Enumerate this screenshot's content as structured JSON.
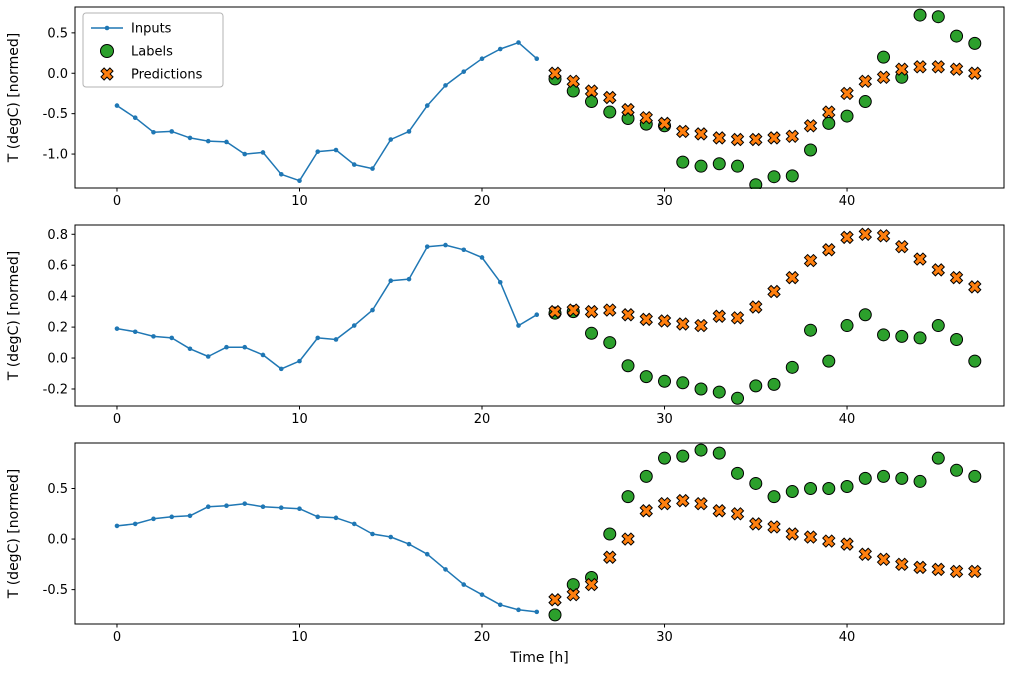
{
  "figure": {
    "background": "#ffffff",
    "text_color": "#000000",
    "spine_color": "#000000",
    "xlabel": "Time [h]",
    "x_inputs": [
      0,
      1,
      2,
      3,
      4,
      5,
      6,
      7,
      8,
      9,
      10,
      11,
      12,
      13,
      14,
      15,
      16,
      17,
      18,
      19,
      20,
      21,
      22,
      23
    ],
    "x_outputs": [
      24,
      25,
      26,
      27,
      28,
      29,
      30,
      31,
      32,
      33,
      34,
      35,
      36,
      37,
      38,
      39,
      40,
      41,
      42,
      43,
      44,
      45,
      46,
      47
    ],
    "legend": {
      "position": "upper-left",
      "entries": [
        {
          "label": "Inputs",
          "marker": "line-dot",
          "color": "#1f77b4"
        },
        {
          "label": "Labels",
          "marker": "circle",
          "color": "#2ca02c",
          "edge_color": "#000000"
        },
        {
          "label": "Predictions",
          "marker": "X",
          "color": "#ff7f0e",
          "edge_color": "#000000"
        }
      ]
    }
  },
  "chart_data": [
    {
      "type": "line",
      "title": "",
      "ylabel": "T (degC) [normed]",
      "xlabel": "",
      "grid": false,
      "xlim": [
        -2.3,
        48.6
      ],
      "ylim": [
        -1.42,
        0.82
      ],
      "xticks": [
        0,
        10,
        20,
        30,
        40
      ],
      "xtick_labels": [
        "0",
        "10",
        "20",
        "30",
        "40"
      ],
      "yticks": [
        0.5,
        0.0,
        -0.5,
        -1.0
      ],
      "ytick_labels": [
        "0.5",
        "0.0",
        "-0.5",
        "-1.0"
      ],
      "series": [
        {
          "name": "Inputs",
          "marker": "line-dot",
          "color": "#1f77b4",
          "x_ref": "x_inputs",
          "y": [
            -0.4,
            -0.55,
            -0.73,
            -0.72,
            -0.8,
            -0.84,
            -0.85,
            -1.0,
            -0.98,
            -1.25,
            -1.33,
            -0.97,
            -0.95,
            -1.13,
            -1.18,
            -0.82,
            -0.72,
            -0.4,
            -0.15,
            0.02,
            0.18,
            0.3,
            0.38,
            0.18
          ]
        },
        {
          "name": "Labels",
          "marker": "circle",
          "color": "#2ca02c",
          "edge_color": "#000000",
          "x_ref": "x_outputs",
          "y": [
            -0.07,
            -0.22,
            -0.35,
            -0.48,
            -0.56,
            -0.63,
            -0.65,
            -1.1,
            -1.15,
            -1.12,
            -1.15,
            -1.38,
            -1.28,
            -1.27,
            -0.95,
            -0.62,
            -0.53,
            -0.35,
            0.2,
            -0.05,
            0.72,
            0.7,
            0.46,
            0.37
          ]
        },
        {
          "name": "Predictions",
          "marker": "X",
          "color": "#ff7f0e",
          "edge_color": "#000000",
          "x_ref": "x_outputs",
          "y": [
            0.0,
            -0.1,
            -0.22,
            -0.3,
            -0.45,
            -0.55,
            -0.62,
            -0.72,
            -0.75,
            -0.8,
            -0.82,
            -0.82,
            -0.8,
            -0.78,
            -0.65,
            -0.48,
            -0.25,
            -0.1,
            -0.05,
            0.05,
            0.08,
            0.08,
            0.05,
            0.0
          ]
        }
      ]
    },
    {
      "type": "line",
      "title": "",
      "ylabel": "T (degC) [normed]",
      "xlabel": "",
      "grid": false,
      "xlim": [
        -2.3,
        48.6
      ],
      "ylim": [
        -0.31,
        0.86
      ],
      "xticks": [
        0,
        10,
        20,
        30,
        40
      ],
      "xtick_labels": [
        "0",
        "10",
        "20",
        "30",
        "40"
      ],
      "yticks": [
        0.8,
        0.6,
        0.4,
        0.2,
        0.0,
        -0.2
      ],
      "ytick_labels": [
        "0.8",
        "0.6",
        "0.4",
        "0.2",
        "0.0",
        "-0.2"
      ],
      "series": [
        {
          "name": "Inputs",
          "marker": "line-dot",
          "color": "#1f77b4",
          "x_ref": "x_inputs",
          "y": [
            0.19,
            0.17,
            0.14,
            0.13,
            0.06,
            0.01,
            0.07,
            0.07,
            0.02,
            -0.07,
            -0.02,
            0.13,
            0.12,
            0.21,
            0.31,
            0.5,
            0.51,
            0.72,
            0.73,
            0.7,
            0.65,
            0.49,
            0.21,
            0.28
          ]
        },
        {
          "name": "Labels",
          "marker": "circle",
          "color": "#2ca02c",
          "edge_color": "#000000",
          "x_ref": "x_outputs",
          "y": [
            0.29,
            0.3,
            0.16,
            0.1,
            -0.05,
            -0.12,
            -0.15,
            -0.16,
            -0.2,
            -0.22,
            -0.26,
            -0.18,
            -0.17,
            -0.06,
            0.18,
            -0.02,
            0.21,
            0.28,
            0.15,
            0.14,
            0.13,
            0.21,
            0.12,
            -0.02
          ]
        },
        {
          "name": "Predictions",
          "marker": "X",
          "color": "#ff7f0e",
          "edge_color": "#000000",
          "x_ref": "x_outputs",
          "y": [
            0.3,
            0.31,
            0.3,
            0.31,
            0.28,
            0.25,
            0.24,
            0.22,
            0.21,
            0.27,
            0.26,
            0.33,
            0.43,
            0.52,
            0.63,
            0.7,
            0.78,
            0.8,
            0.79,
            0.72,
            0.64,
            0.57,
            0.52,
            0.46
          ]
        }
      ]
    },
    {
      "type": "line",
      "title": "",
      "ylabel": "T (degC) [normed]",
      "xlabel": "Time [h]",
      "grid": false,
      "xlim": [
        -2.3,
        48.6
      ],
      "ylim": [
        -0.84,
        0.95
      ],
      "xticks": [
        0,
        10,
        20,
        30,
        40
      ],
      "xtick_labels": [
        "0",
        "10",
        "20",
        "30",
        "40"
      ],
      "yticks": [
        0.5,
        0.0,
        -0.5
      ],
      "ytick_labels": [
        "0.5",
        "0.0",
        "-0.5"
      ],
      "series": [
        {
          "name": "Inputs",
          "marker": "line-dot",
          "color": "#1f77b4",
          "x_ref": "x_inputs",
          "y": [
            0.13,
            0.15,
            0.2,
            0.22,
            0.23,
            0.32,
            0.33,
            0.35,
            0.32,
            0.31,
            0.3,
            0.22,
            0.21,
            0.15,
            0.05,
            0.02,
            -0.05,
            -0.15,
            -0.3,
            -0.45,
            -0.55,
            -0.65,
            -0.7,
            -0.72
          ]
        },
        {
          "name": "Labels",
          "marker": "circle",
          "color": "#2ca02c",
          "edge_color": "#000000",
          "x_ref": "x_outputs",
          "y": [
            -0.75,
            -0.45,
            -0.38,
            0.05,
            0.42,
            0.62,
            0.8,
            0.82,
            0.88,
            0.85,
            0.65,
            0.55,
            0.42,
            0.47,
            0.5,
            0.5,
            0.52,
            0.6,
            0.62,
            0.6,
            0.57,
            0.8,
            0.68,
            0.62
          ]
        },
        {
          "name": "Predictions",
          "marker": "X",
          "color": "#ff7f0e",
          "edge_color": "#000000",
          "x_ref": "x_outputs",
          "y": [
            -0.6,
            -0.55,
            -0.45,
            -0.18,
            0.0,
            0.28,
            0.35,
            0.38,
            0.35,
            0.28,
            0.25,
            0.15,
            0.12,
            0.05,
            0.02,
            -0.02,
            -0.05,
            -0.15,
            -0.2,
            -0.25,
            -0.28,
            -0.3,
            -0.32,
            -0.32
          ]
        }
      ]
    }
  ]
}
